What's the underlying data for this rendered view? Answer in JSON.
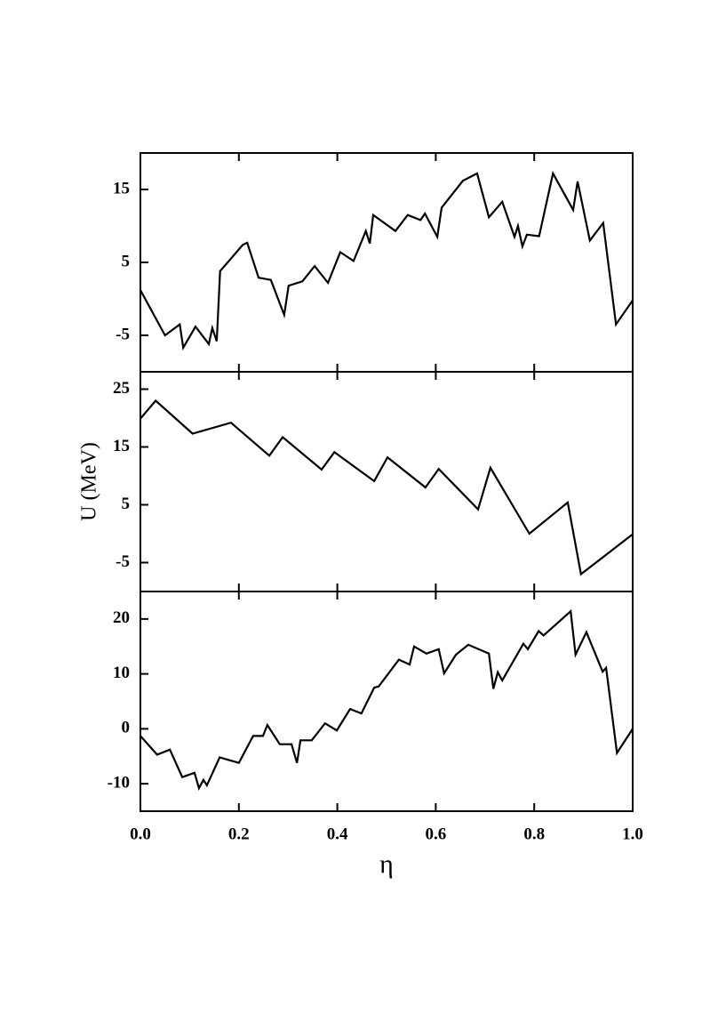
{
  "chart_data": [
    {
      "type": "line",
      "color": "#000000",
      "xlim": [
        0,
        1
      ],
      "ylim": [
        -10,
        20
      ],
      "yticks": [
        15,
        5,
        -5
      ],
      "x": [
        0,
        0.05,
        0.08,
        0.087,
        0.112,
        0.139,
        0.146,
        0.155,
        0.162,
        0.208,
        0.217,
        0.24,
        0.265,
        0.292,
        0.301,
        0.329,
        0.354,
        0.381,
        0.406,
        0.433,
        0.458,
        0.466,
        0.473,
        0.518,
        0.543,
        0.569,
        0.578,
        0.603,
        0.612,
        0.655,
        0.684,
        0.708,
        0.735,
        0.76,
        0.767,
        0.776,
        0.785,
        0.81,
        0.838,
        0.879,
        0.888,
        0.913,
        0.94,
        0.966,
        1.0
      ],
      "values": [
        1.2,
        -5,
        -3.5,
        -6.7,
        -3.8,
        -6.2,
        -4,
        -5.8,
        3.8,
        7.4,
        7.7,
        2.9,
        2.6,
        -2.2,
        1.8,
        2.4,
        4.5,
        2.2,
        6.4,
        5.2,
        9.3,
        7.6,
        11.5,
        9.3,
        11.5,
        10.8,
        11.7,
        8.5,
        12.5,
        16.2,
        17.2,
        11.2,
        13.3,
        8.5,
        10,
        7.2,
        8.8,
        8.6,
        17.2,
        12.2,
        16.1,
        8,
        10.4,
        -3.5,
        -0.2
      ]
    },
    {
      "type": "line",
      "color": "#000000",
      "ylabel": "U  (MeV)",
      "xlim": [
        0,
        1
      ],
      "ylim": [
        -10,
        28
      ],
      "yticks": [
        25,
        15,
        5,
        -5
      ],
      "x": [
        0,
        0.031,
        0.106,
        0.184,
        0.262,
        0.289,
        0.368,
        0.394,
        0.475,
        0.502,
        0.579,
        0.606,
        0.686,
        0.711,
        0.79,
        0.868,
        0.895,
        1.0
      ],
      "values": [
        19.9,
        23,
        17.3,
        19.2,
        13.5,
        16.7,
        11.1,
        14.1,
        9.1,
        13.2,
        8,
        11.2,
        4.2,
        11.4,
        0,
        5.4,
        -7,
        -0.1
      ]
    },
    {
      "type": "line",
      "color": "#000000",
      "xlabel": "η",
      "xlim": [
        0,
        1
      ],
      "ylim": [
        -15,
        25
      ],
      "yticks": [
        20,
        10,
        0,
        -10
      ],
      "xticks": [
        {
          "value": 0,
          "label": "0.0"
        },
        {
          "value": 0.2,
          "label": "0.2"
        },
        {
          "value": 0.4,
          "label": "0.4"
        },
        {
          "value": 0.6,
          "label": "0.6"
        },
        {
          "value": 0.8,
          "label": "0.8"
        },
        {
          "value": 1,
          "label": "1.0"
        }
      ],
      "x": [
        0,
        0.034,
        0.06,
        0.085,
        0.11,
        0.119,
        0.128,
        0.135,
        0.161,
        0.2,
        0.229,
        0.249,
        0.258,
        0.283,
        0.307,
        0.318,
        0.325,
        0.348,
        0.375,
        0.399,
        0.426,
        0.449,
        0.475,
        0.484,
        0.525,
        0.547,
        0.556,
        0.581,
        0.606,
        0.617,
        0.641,
        0.666,
        0.708,
        0.717,
        0.726,
        0.735,
        0.778,
        0.787,
        0.809,
        0.819,
        0.874,
        0.884,
        0.906,
        0.939,
        0.946,
        0.968,
        1.0
      ],
      "values": [
        -1.3,
        -4.7,
        -3.8,
        -8.8,
        -8,
        -10.8,
        -9.3,
        -10.3,
        -5.2,
        -6.2,
        -1.3,
        -1.3,
        0.7,
        -2.8,
        -2.8,
        -6.2,
        -2.1,
        -2.1,
        1,
        -0.3,
        3.6,
        2.8,
        7.5,
        7.7,
        12.6,
        11.7,
        15,
        13.7,
        14.5,
        10.1,
        13.5,
        15.3,
        13.7,
        7.3,
        10.3,
        8.8,
        15.5,
        14.5,
        17.8,
        17,
        21.4,
        13.5,
        17.6,
        10.4,
        11.1,
        -4.4,
        0
      ]
    }
  ]
}
